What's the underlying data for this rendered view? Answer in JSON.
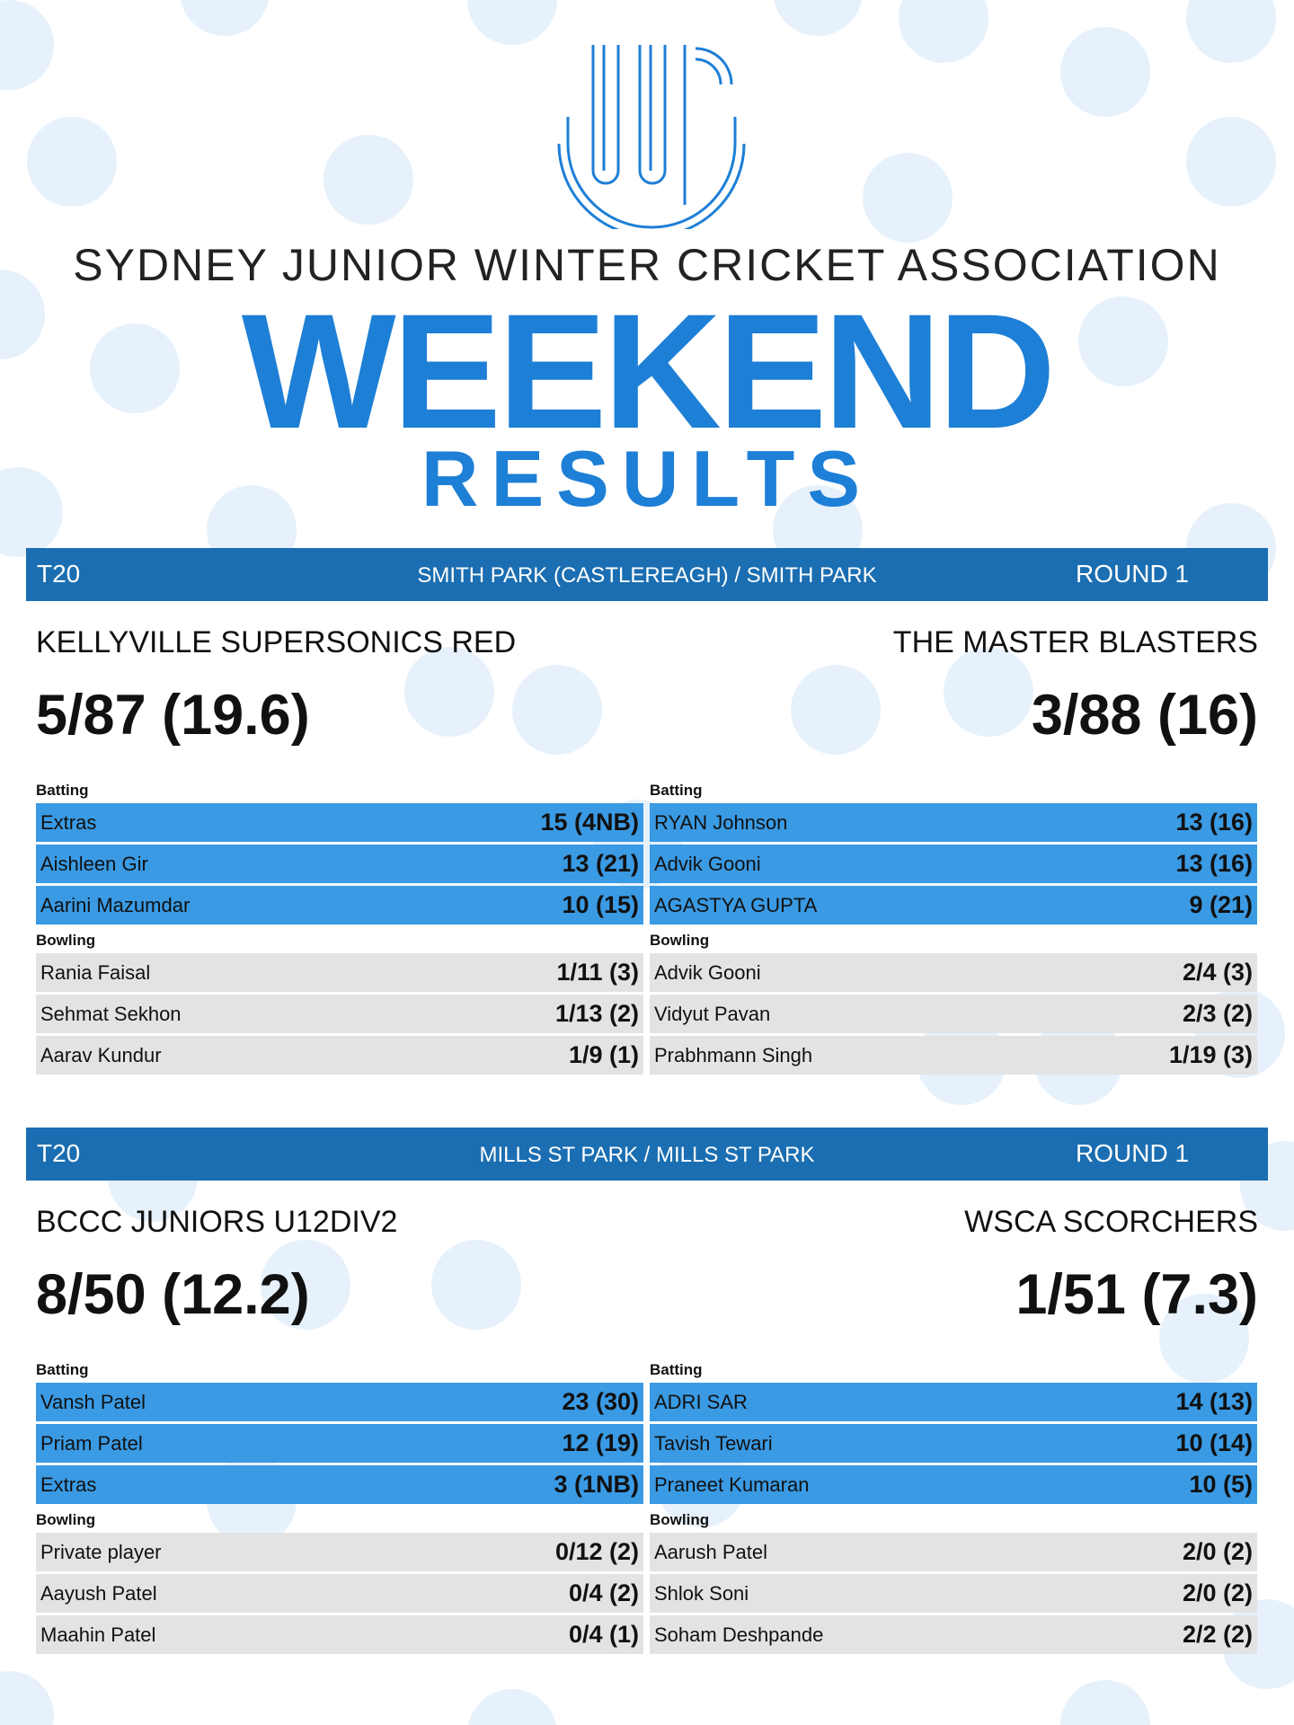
{
  "header": {
    "org_name": "SYDNEY JUNIOR WINTER CRICKET ASSOCIATION",
    "headline": "WEEKEND",
    "subheadline": "RESULTS",
    "logo_icon": "sjwca-logo-icon",
    "accent_color": "#1e7fd6"
  },
  "matches": [
    {
      "format": "T20",
      "venue": "SMITH PARK (CASTLEREAGH) / SMITH PARK",
      "round": "ROUND 1",
      "home": {
        "team": "KELLYVILLE SUPERSONICS RED",
        "score": "5/87 (19.6)",
        "batting_label": "Batting",
        "batting": [
          {
            "name": "Extras",
            "value": "15 (4NB)"
          },
          {
            "name": "Aishleen Gir",
            "value": "13 (21)"
          },
          {
            "name": "Aarini Mazumdar",
            "value": "10 (15)"
          }
        ],
        "bowling_label": "Bowling",
        "bowling": [
          {
            "name": "Rania Faisal",
            "value": "1/11 (3)"
          },
          {
            "name": "Sehmat Sekhon",
            "value": "1/13 (2)"
          },
          {
            "name": "Aarav Kundur",
            "value": "1/9 (1)"
          }
        ]
      },
      "away": {
        "team": "THE MASTER BLASTERS",
        "score": "3/88 (16)",
        "batting_label": "Batting",
        "batting": [
          {
            "name": "RYAN Johnson",
            "value": "13 (16)"
          },
          {
            "name": "Advik Gooni",
            "value": "13 (16)"
          },
          {
            "name": "AGASTYA GUPTA",
            "value": "9 (21)"
          }
        ],
        "bowling_label": "Bowling",
        "bowling": [
          {
            "name": "Advik Gooni",
            "value": "2/4 (3)"
          },
          {
            "name": "Vidyut Pavan",
            "value": "2/3 (2)"
          },
          {
            "name": "Prabhmann Singh",
            "value": "1/19 (3)"
          }
        ]
      }
    },
    {
      "format": "T20",
      "venue": "MILLS ST PARK / MILLS ST PARK",
      "round": "ROUND 1",
      "home": {
        "team": "BCCC JUNIORS U12DIV2",
        "score": "8/50 (12.2)",
        "batting_label": "Batting",
        "batting": [
          {
            "name": "Vansh Patel",
            "value": "23 (30)"
          },
          {
            "name": "Priam Patel",
            "value": "12 (19)"
          },
          {
            "name": "Extras",
            "value": "3 (1NB)"
          }
        ],
        "bowling_label": "Bowling",
        "bowling": [
          {
            "name": "Private player",
            "value": "0/12 (2)"
          },
          {
            "name": "Aayush Patel",
            "value": "0/4 (2)"
          },
          {
            "name": "Maahin Patel",
            "value": "0/4 (1)"
          }
        ]
      },
      "away": {
        "team": "WSCA SCORCHERS",
        "score": "1/51 (7.3)",
        "batting_label": "Batting",
        "batting": [
          {
            "name": "ADRI SAR",
            "value": "14 (13)"
          },
          {
            "name": "Tavish Tewari",
            "value": "10 (14)"
          },
          {
            "name": "Praneet Kumaran",
            "value": "10 (5)"
          }
        ],
        "bowling_label": "Bowling",
        "bowling": [
          {
            "name": "Aarush Patel",
            "value": "2/0 (2)"
          },
          {
            "name": "Shlok Soni",
            "value": "2/0 (2)"
          },
          {
            "name": "Soham Deshpande",
            "value": "2/2 (2)"
          }
        ]
      }
    }
  ]
}
